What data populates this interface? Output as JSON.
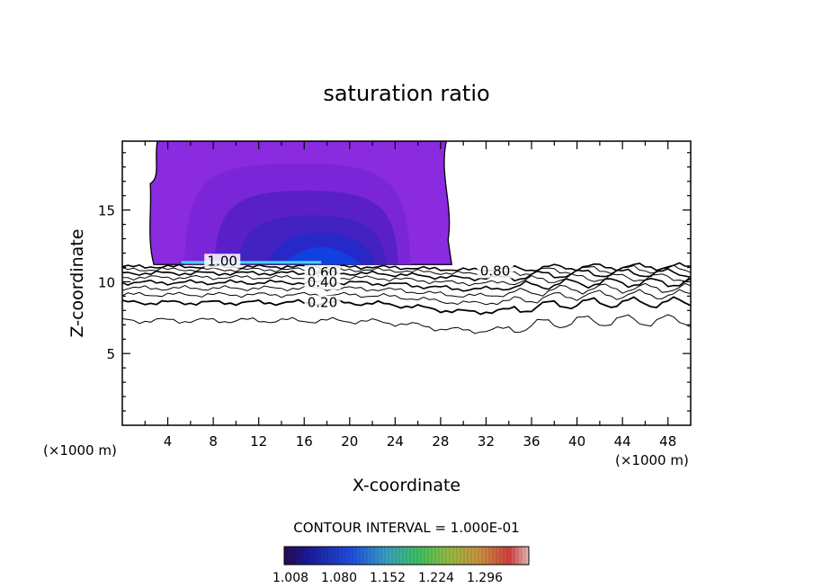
{
  "chart_data": {
    "type": "contour",
    "title": "saturation ratio",
    "xlabel": "X-coordinate",
    "ylabel": "Z-coordinate",
    "x_unit_left": "(×1000 m)",
    "x_unit_right": "(×1000 m)",
    "xlim": [
      0,
      50
    ],
    "ylim": [
      0,
      19.8
    ],
    "xticks": [
      4,
      8,
      12,
      16,
      20,
      24,
      28,
      32,
      36,
      40,
      44,
      48
    ],
    "yticks": [
      5,
      10,
      15
    ],
    "contour_interval_text": "CONTOUR INTERVAL = 1.000E-01",
    "contour_labels": [
      {
        "text": "1.00",
        "x": 8.8,
        "z": 11.2
      },
      {
        "text": "0.80",
        "x": 32.8,
        "z": 10.5
      },
      {
        "text": "0.60",
        "x": 17.6,
        "z": 10.4
      },
      {
        "text": "0.40",
        "x": 17.6,
        "z": 9.7
      },
      {
        "text": "0.20",
        "x": 17.6,
        "z": 8.3
      }
    ],
    "colorbar": {
      "ticks": [
        "1.008",
        "1.080",
        "1.152",
        "1.224",
        "1.296"
      ]
    },
    "supersaturated_region": {
      "x_range": [
        2.3,
        28.5
      ],
      "z_range": [
        11.2,
        19.8
      ]
    },
    "colors": {
      "region_outer": "#8a2be0",
      "region_mid": "#5a20c8",
      "region_inner": "#2828c8",
      "region_core": "#1040e0",
      "highlight": "#4fd0ff"
    }
  }
}
